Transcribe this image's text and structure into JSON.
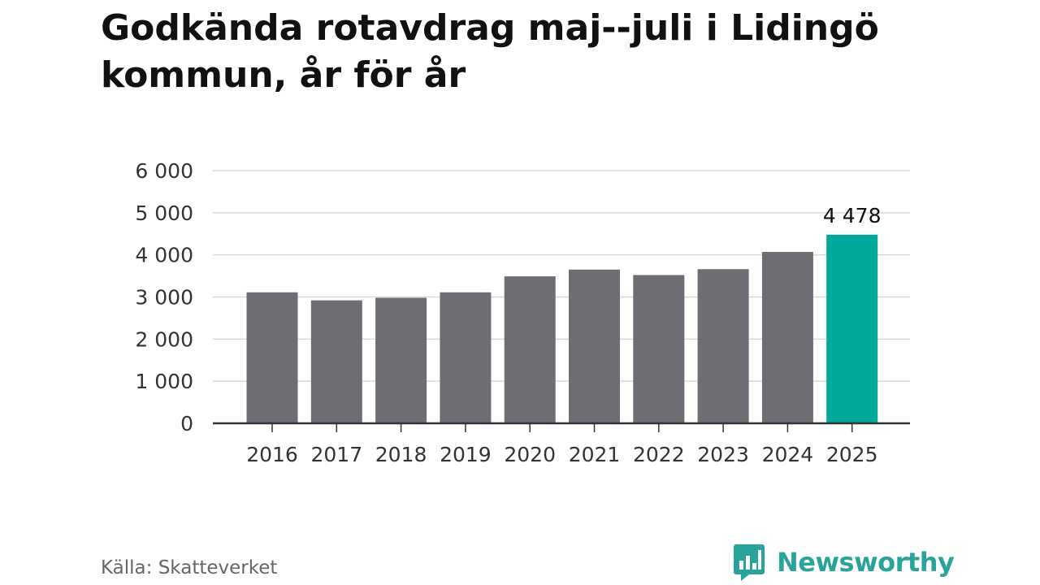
{
  "title": "Godkända rotavdrag maj--juli i Lidingö kommun, år för år",
  "source": "Källa: Skatteverket",
  "brand": {
    "name": "Newsworthy",
    "color": "#2aa39a"
  },
  "colors": {
    "bar": "#6e6d74",
    "highlight": "#00a79b",
    "grid": "#d9d9d9",
    "axis": "#333333"
  },
  "chart_data": {
    "type": "bar",
    "categories": [
      "2016",
      "2017",
      "2018",
      "2019",
      "2020",
      "2021",
      "2022",
      "2023",
      "2024",
      "2025"
    ],
    "values": [
      3110,
      2920,
      2980,
      3110,
      3490,
      3650,
      3520,
      3660,
      4070,
      4478
    ],
    "highlight_index": 9,
    "data_labels": [
      {
        "index": 9,
        "text": "4 478"
      }
    ],
    "ylim": [
      0,
      6000
    ],
    "yticks": [
      0,
      1000,
      2000,
      3000,
      4000,
      5000,
      6000
    ],
    "ytick_labels": [
      "0",
      "1 000",
      "2 000",
      "3 000",
      "4 000",
      "5 000",
      "6 000"
    ],
    "grid": true,
    "xlabel": "",
    "ylabel": ""
  }
}
